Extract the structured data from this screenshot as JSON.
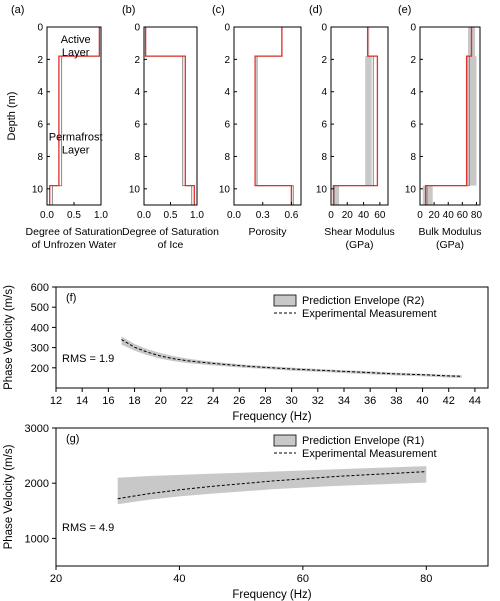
{
  "chart_data": [
    {
      "type": "line",
      "panel_label": "(a)",
      "xlabel": "Degree of Saturation\nof Unfrozen Water",
      "xlim": [
        0,
        1.0
      ],
      "xticks": [
        {
          "v": 0,
          "t": "0.0"
        },
        {
          "v": 0.5,
          "t": "0.5"
        },
        {
          "v": 1.0,
          "t": "1.0"
        }
      ],
      "ylim": [
        0,
        11
      ],
      "yticks": [
        0,
        2,
        4,
        6,
        8,
        10
      ],
      "ylabel": "Depth (m)",
      "annotations": [
        {
          "text": "Active\nLayer",
          "x": 0.55,
          "y": 1.0
        },
        {
          "text": "Permafrost\nLayer",
          "x": 0.55,
          "y": 7.0
        }
      ],
      "series": [
        {
          "role": "prediction",
          "points": [
            [
              0.97,
              0
            ],
            [
              0.97,
              1.8
            ],
            [
              0.27,
              1.8
            ],
            [
              0.27,
              9.8
            ],
            [
              0.1,
              9.8
            ],
            [
              0.1,
              11
            ]
          ]
        },
        {
          "role": "true",
          "points": [
            [
              0.97,
              0
            ],
            [
              0.97,
              1.8
            ],
            [
              0.22,
              1.8
            ],
            [
              0.22,
              9.8
            ],
            [
              0.05,
              9.8
            ],
            [
              0.05,
              11
            ]
          ]
        }
      ]
    },
    {
      "type": "line",
      "panel_label": "(b)",
      "xlabel": "Degree of Saturation\nof Ice",
      "xlim": [
        0,
        1.0
      ],
      "xticks": [
        {
          "v": 0,
          "t": "0.0"
        },
        {
          "v": 0.5,
          "t": "0.5"
        },
        {
          "v": 1.0,
          "t": "1.0"
        }
      ],
      "ylim": [
        0,
        11
      ],
      "yticks": [
        0,
        2,
        4,
        6,
        8,
        10
      ],
      "ylabel": "",
      "annotations": [],
      "series": [
        {
          "role": "prediction",
          "points": [
            [
              0.03,
              0
            ],
            [
              0.03,
              1.8
            ],
            [
              0.73,
              1.8
            ],
            [
              0.73,
              9.8
            ],
            [
              0.9,
              9.8
            ],
            [
              0.9,
              11
            ]
          ]
        },
        {
          "role": "true",
          "points": [
            [
              0.03,
              0
            ],
            [
              0.03,
              1.8
            ],
            [
              0.78,
              1.8
            ],
            [
              0.78,
              9.8
            ],
            [
              0.95,
              9.8
            ],
            [
              0.95,
              11
            ]
          ]
        }
      ]
    },
    {
      "type": "line",
      "panel_label": "(c)",
      "xlabel": "Porosity",
      "xlim": [
        0,
        0.7
      ],
      "xticks": [
        {
          "v": 0,
          "t": "0.0"
        },
        {
          "v": 0.3,
          "t": "0.3"
        },
        {
          "v": 0.6,
          "t": "0.6"
        }
      ],
      "ylim": [
        0,
        11
      ],
      "yticks": [
        0,
        2,
        4,
        6,
        8,
        10
      ],
      "ylabel": "",
      "annotations": [],
      "series": [
        {
          "role": "prediction",
          "points": [
            [
              0.5,
              0
            ],
            [
              0.5,
              1.8
            ],
            [
              0.24,
              1.8
            ],
            [
              0.24,
              9.8
            ],
            [
              0.62,
              9.8
            ],
            [
              0.62,
              11
            ]
          ]
        },
        {
          "role": "true",
          "points": [
            [
              0.5,
              0
            ],
            [
              0.5,
              1.8
            ],
            [
              0.22,
              1.8
            ],
            [
              0.22,
              9.8
            ],
            [
              0.6,
              9.8
            ],
            [
              0.6,
              11
            ]
          ]
        }
      ]
    },
    {
      "type": "line",
      "panel_label": "(d)",
      "xlabel": "Shear Modulus\n(GPa)",
      "xlim": [
        0,
        70
      ],
      "xticks": [
        {
          "v": 0,
          "t": "0"
        },
        {
          "v": 20,
          "t": "20"
        },
        {
          "v": 40,
          "t": "40"
        },
        {
          "v": 60,
          "t": "60"
        }
      ],
      "ylim": [
        0,
        11
      ],
      "yticks": [
        0,
        2,
        4,
        6,
        8,
        10
      ],
      "ylabel": "",
      "annotations": [],
      "series": [
        {
          "role": "band",
          "points": [
            [
              45,
              0
            ],
            [
              45,
              1.8
            ],
            [
              42,
              1.8
            ],
            [
              42,
              9.8
            ],
            [
              3,
              9.8
            ],
            [
              3,
              11
            ],
            [
              10,
              11
            ],
            [
              10,
              9.8
            ],
            [
              50,
              9.8
            ],
            [
              50,
              1.8
            ],
            [
              47,
              1.8
            ],
            [
              47,
              0
            ]
          ]
        },
        {
          "role": "prediction",
          "points": [
            [
              45,
              0
            ],
            [
              45,
              1.8
            ],
            [
              52,
              1.8
            ],
            [
              52,
              9.8
            ],
            [
              4,
              9.8
            ],
            [
              4,
              11
            ]
          ]
        },
        {
          "role": "true",
          "points": [
            [
              45,
              0
            ],
            [
              45,
              1.8
            ],
            [
              57,
              1.8
            ],
            [
              57,
              9.8
            ],
            [
              3,
              9.8
            ],
            [
              3,
              11
            ]
          ]
        }
      ]
    },
    {
      "type": "line",
      "panel_label": "(e)",
      "xlabel": "Bulk Modulus\n(GPa)",
      "xlim": [
        0,
        85
      ],
      "xticks": [
        {
          "v": 0,
          "t": "0"
        },
        {
          "v": 20,
          "t": "20"
        },
        {
          "v": 40,
          "t": "40"
        },
        {
          "v": 60,
          "t": "60"
        },
        {
          "v": 80,
          "t": "80"
        }
      ],
      "ylim": [
        0,
        11
      ],
      "yticks": [
        0,
        2,
        4,
        6,
        8,
        10
      ],
      "ylabel": "",
      "annotations": [],
      "series": [
        {
          "role": "band",
          "points": [
            [
              68,
              0
            ],
            [
              68,
              1.8
            ],
            [
              66,
              1.8
            ],
            [
              66,
              9.8
            ],
            [
              4,
              9.8
            ],
            [
              4,
              11
            ],
            [
              18,
              11
            ],
            [
              18,
              9.8
            ],
            [
              80,
              9.8
            ],
            [
              80,
              1.8
            ],
            [
              78,
              1.8
            ],
            [
              78,
              0
            ]
          ]
        },
        {
          "role": "prediction",
          "points": [
            [
              73,
              0
            ],
            [
              73,
              1.8
            ],
            [
              70,
              1.8
            ],
            [
              70,
              9.8
            ],
            [
              10,
              9.8
            ],
            [
              10,
              11
            ]
          ]
        },
        {
          "role": "true",
          "points": [
            [
              73,
              0
            ],
            [
              73,
              1.8
            ],
            [
              66,
              1.8
            ],
            [
              66,
              9.8
            ],
            [
              8,
              9.8
            ],
            [
              8,
              11
            ]
          ]
        }
      ]
    },
    {
      "type": "area",
      "panel_label": "(f)",
      "xlabel": "Frequency (Hz)",
      "ylabel": "Phase Velocity (m/s)",
      "xlim": [
        12,
        45
      ],
      "ylim": [
        100,
        600
      ],
      "xticks": [
        12,
        14,
        16,
        18,
        20,
        22,
        24,
        26,
        28,
        30,
        32,
        34,
        36,
        38,
        40,
        42,
        44
      ],
      "yticks": [
        200,
        300,
        400,
        500,
        600
      ],
      "annotation": "RMS = 1.9",
      "legend": [
        "Prediction Envelope (R2)",
        "Experimental Measurement"
      ],
      "x": [
        17,
        18,
        19,
        20,
        21,
        22,
        23,
        24,
        25,
        26,
        27,
        28,
        29,
        30,
        31,
        32,
        33,
        34,
        35,
        36,
        37,
        38,
        39,
        40,
        41,
        42,
        43
      ],
      "band_low": [
        315,
        285,
        262,
        245,
        232,
        224,
        218,
        212,
        207,
        202,
        198,
        194,
        190,
        186,
        183,
        180,
        177,
        174,
        171,
        168,
        165,
        162,
        160,
        158,
        155,
        152,
        150
      ],
      "band_high": [
        355,
        318,
        292,
        273,
        258,
        246,
        237,
        230,
        224,
        218,
        213,
        209,
        205,
        201,
        198,
        194,
        191,
        188,
        185,
        182,
        179,
        176,
        173,
        171,
        168,
        165,
        163
      ],
      "measured": [
        340,
        302,
        277,
        258,
        245,
        235,
        228,
        222,
        216,
        211,
        206,
        202,
        198,
        194,
        191,
        188,
        185,
        182,
        179,
        176,
        173,
        170,
        168,
        166,
        163,
        160,
        158
      ]
    },
    {
      "type": "area",
      "panel_label": "(g)",
      "xlabel": "Frequency (Hz)",
      "ylabel": "Phase Velocity (m/s)",
      "xlim": [
        20,
        90
      ],
      "ylim": [
        500,
        3000
      ],
      "xticks": [
        20,
        40,
        60,
        80
      ],
      "yticks": [
        1000,
        2000,
        3000
      ],
      "annotation": "RMS = 4.9",
      "legend": [
        "Prediction Envelope (R1)",
        "Experimental Measurement"
      ],
      "x": [
        30,
        35,
        40,
        45,
        50,
        55,
        60,
        65,
        70,
        75,
        80
      ],
      "band_low": [
        1620,
        1700,
        1760,
        1810,
        1850,
        1890,
        1920,
        1950,
        1970,
        1990,
        2010
      ],
      "band_high": [
        2100,
        2130,
        2150,
        2170,
        2190,
        2210,
        2230,
        2250,
        2270,
        2290,
        2310
      ],
      "measured": [
        1720,
        1810,
        1880,
        1940,
        1990,
        2040,
        2080,
        2120,
        2150,
        2180,
        2210
      ]
    }
  ]
}
